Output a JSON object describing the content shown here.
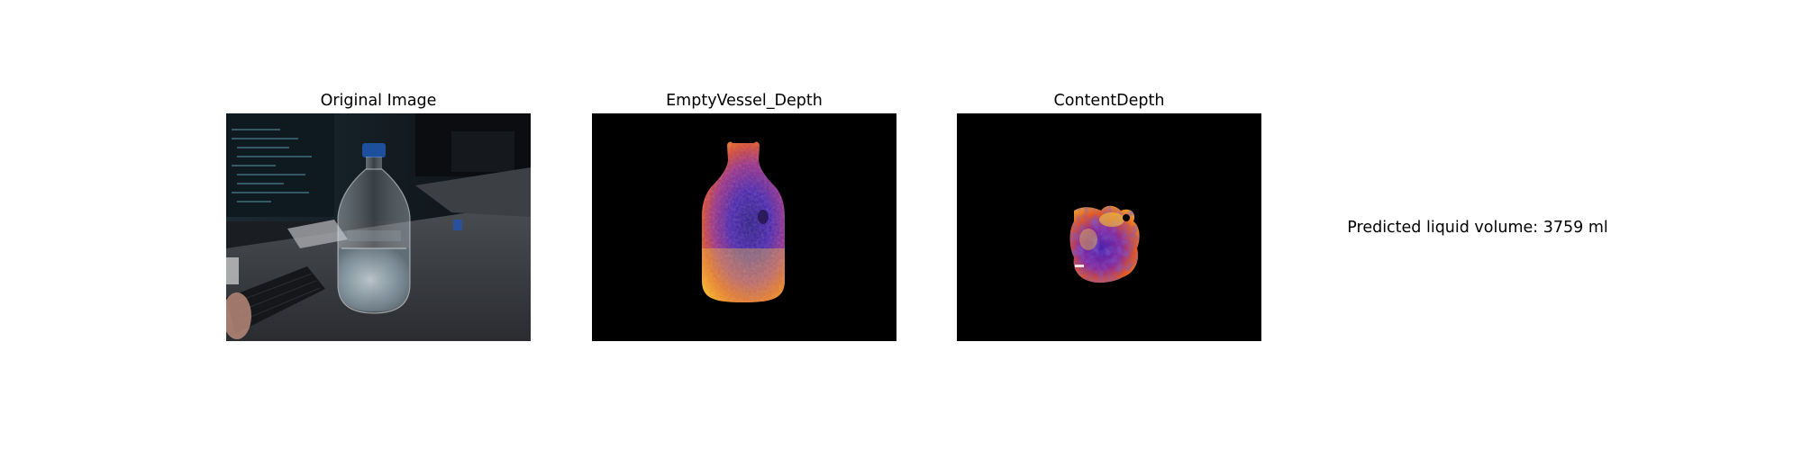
{
  "panels": [
    {
      "title": "Original Image"
    },
    {
      "title": "EmptyVessel_Depth"
    },
    {
      "title": "ContentDepth"
    }
  ],
  "result": {
    "text": "Predicted liquid volume: 3759 ml"
  },
  "colors": {
    "background": "#ffffff",
    "depth_background": "#000000",
    "colormap": [
      "#2d1b8a",
      "#6a2bc4",
      "#c0305a",
      "#f06a1a",
      "#fbd33a"
    ]
  }
}
